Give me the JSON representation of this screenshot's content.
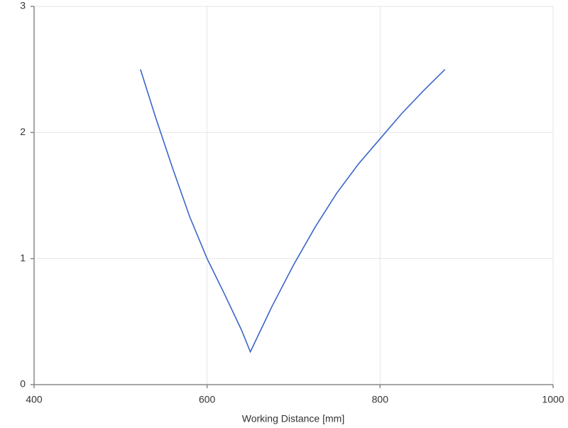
{
  "chart_data": {
    "type": "line",
    "x_label": "Working Distance [mm]",
    "x": [
      523,
      540,
      560,
      580,
      600,
      620,
      640,
      650,
      675,
      700,
      725,
      750,
      775,
      800,
      825,
      850,
      875
    ],
    "series": [
      {
        "color": "#3a66c8",
        "values": [
          2.5,
          2.13,
          1.72,
          1.33,
          1.0,
          0.72,
          0.43,
          0.26,
          0.62,
          0.95,
          1.25,
          1.52,
          1.75,
          1.95,
          2.15,
          2.33,
          2.5
        ]
      }
    ],
    "xlim": [
      400,
      1000
    ],
    "xticks": [
      400,
      600,
      800,
      1000
    ],
    "ylim": [
      0,
      3
    ],
    "yticks": [
      0,
      1,
      2,
      3
    ],
    "grid": true
  }
}
